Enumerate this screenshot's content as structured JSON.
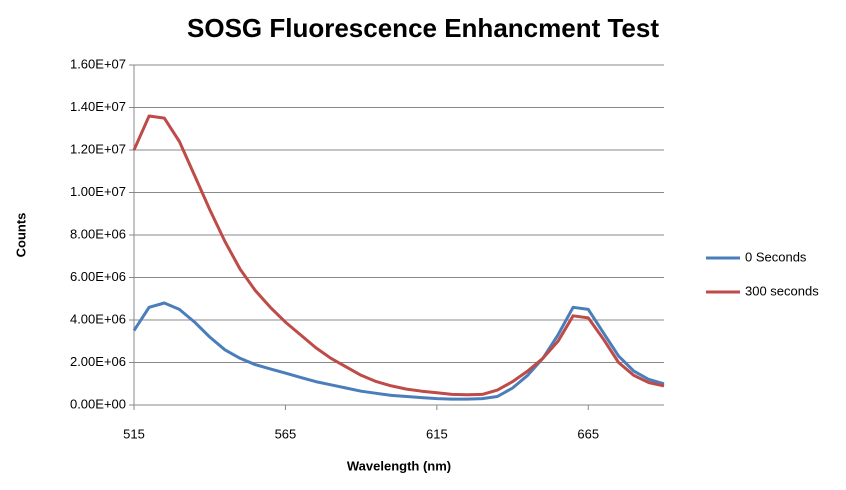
{
  "chart_data": {
    "type": "line",
    "title": "SOSG Fluorescence Enhancment Test",
    "x_label": "Wavelength (nm)",
    "y_label": "Counts",
    "x": [
      515,
      520,
      525,
      530,
      535,
      540,
      545,
      550,
      555,
      560,
      565,
      570,
      575,
      580,
      585,
      590,
      595,
      600,
      605,
      610,
      615,
      620,
      625,
      630,
      635,
      640,
      645,
      650,
      655,
      660,
      665,
      670,
      675,
      680,
      685,
      690
    ],
    "series": [
      {
        "name": "0 Seconds",
        "color": "#4a7ebb",
        "values": [
          3500000,
          4600000,
          4800000,
          4500000,
          3900000,
          3200000,
          2600000,
          2200000,
          1900000,
          1700000,
          1500000,
          1300000,
          1100000,
          950000,
          800000,
          650000,
          550000,
          450000,
          400000,
          350000,
          300000,
          280000,
          280000,
          300000,
          400000,
          800000,
          1400000,
          2200000,
          3300000,
          4600000,
          4500000,
          3400000,
          2300000,
          1600000,
          1200000,
          1000000
        ]
      },
      {
        "name": "300 seconds",
        "color": "#be4b48",
        "values": [
          12000000,
          13600000,
          13500000,
          12400000,
          10800000,
          9200000,
          7700000,
          6400000,
          5400000,
          4600000,
          3900000,
          3300000,
          2700000,
          2200000,
          1800000,
          1400000,
          1100000,
          900000,
          750000,
          650000,
          580000,
          500000,
          480000,
          500000,
          700000,
          1100000,
          1600000,
          2200000,
          3000000,
          4200000,
          4100000,
          3100000,
          2000000,
          1400000,
          1050000,
          900000
        ]
      }
    ],
    "xlim": [
      515,
      690
    ],
    "xticks": [
      515,
      565,
      615,
      665
    ],
    "ylim": [
      0,
      16000000
    ],
    "yticks": [
      {
        "value": 0,
        "label": "0.00E+00"
      },
      {
        "value": 2000000,
        "label": "2.00E+06"
      },
      {
        "value": 4000000,
        "label": "4.00E+06"
      },
      {
        "value": 6000000,
        "label": "6.00E+06"
      },
      {
        "value": 8000000,
        "label": "8.00E+06"
      },
      {
        "value": 10000000,
        "label": "1.00E+07"
      },
      {
        "value": 12000000,
        "label": "1.20E+07"
      },
      {
        "value": 14000000,
        "label": "1.40E+07"
      },
      {
        "value": 16000000,
        "label": "1.60E+07"
      }
    ],
    "grid": true,
    "legend": "right"
  }
}
